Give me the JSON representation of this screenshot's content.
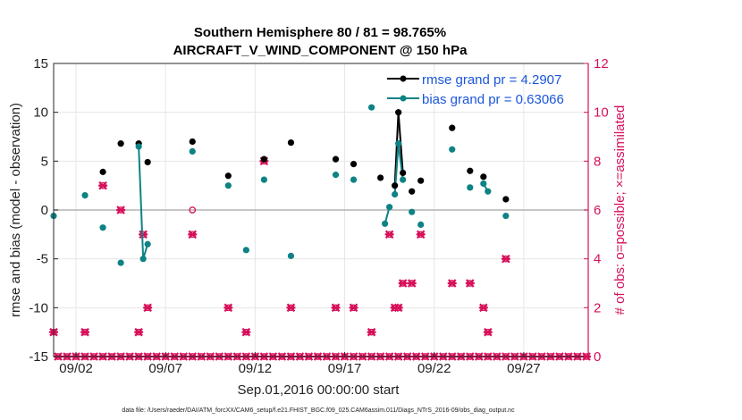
{
  "chart_data": {
    "type": "line",
    "title_line1": "Southern Hemisphere 80 / 81 = 98.765%",
    "title_line2": "AIRCRAFT_V_WIND_COMPONENT @ 150 hPa",
    "xlabel": "Sep.01,2016 00:00:00 start",
    "ylabel_left": "rmse and bias (model - observation)",
    "ylabel_right": "# of obs: o=possible; ×=assimilated",
    "footer": "data file: /Users/raeder/DAI/ATM_forcXX/CAM6_setup/f.e21.FHIST_BGC.f09_025.CAM6assim.011/Diags_NTrS_2016-09/obs_diag_output.nc",
    "xlim": [
      0.75,
      30.6
    ],
    "ylim_left": [
      -15,
      15
    ],
    "ylim_right": [
      0,
      12
    ],
    "xticks": [
      {
        "value": 2,
        "label": "09/02"
      },
      {
        "value": 7,
        "label": "09/07"
      },
      {
        "value": 12,
        "label": "09/12"
      },
      {
        "value": 17,
        "label": "09/17"
      },
      {
        "value": 22,
        "label": "09/22"
      },
      {
        "value": 27,
        "label": "09/27"
      }
    ],
    "yticks_left": [
      -15,
      -10,
      -5,
      0,
      5,
      10,
      15
    ],
    "yticks_right": [
      0,
      2,
      4,
      6,
      8,
      10,
      12
    ],
    "colors": {
      "rmse": "#000000",
      "bias": "#0e8284",
      "obs": "#d6105a",
      "zero_line": "#b3b3b3"
    },
    "series": [
      {
        "name": "rmse grand pr = 4.2907",
        "x": [
          3.5,
          4.5,
          5.5,
          6.0,
          8.5,
          10.5,
          12.5,
          14.0,
          16.5,
          17.5,
          19.0,
          19.8,
          20.0,
          20.25,
          20.75,
          21.25,
          23.0,
          24.0,
          24.75,
          26.0
        ],
        "y": [
          3.9,
          6.8,
          6.8,
          4.9,
          7.0,
          3.5,
          5.2,
          6.9,
          5.2,
          4.7,
          3.3,
          2.5,
          10.0,
          3.8,
          1.9,
          3.0,
          8.4,
          4.0,
          3.4,
          1.1
        ]
      },
      {
        "name": "bias grand pr = 0.63066",
        "x": [
          0.75,
          2.5,
          3.5,
          4.5,
          5.5,
          5.75,
          6.0,
          8.5,
          10.5,
          11.5,
          12.5,
          14.0,
          16.5,
          17.5,
          18.5,
          19.25,
          19.5,
          19.8,
          20.0,
          20.25,
          20.75,
          21.25,
          23.0,
          24.0,
          24.75,
          25.0,
          26.0
        ],
        "y": [
          -0.6,
          1.5,
          -1.8,
          -5.4,
          6.5,
          -5.0,
          -3.5,
          6.0,
          2.5,
          -4.1,
          3.1,
          -4.7,
          3.6,
          3.1,
          10.5,
          -1.4,
          0.3,
          1.6,
          6.8,
          3.1,
          -0.2,
          -1.5,
          6.2,
          2.3,
          2.7,
          1.9,
          -0.6
        ]
      }
    ],
    "assimilated_obs": {
      "x": [
        0.75,
        2.5,
        3.5,
        4.5,
        5.5,
        5.75,
        6.0,
        8.5,
        10.5,
        11.5,
        12.5,
        14.0,
        16.5,
        17.5,
        18.5,
        19.5,
        19.8,
        20.0,
        20.25,
        20.75,
        21.25,
        23.0,
        24.0,
        24.75,
        25.0,
        26.0
      ],
      "y": [
        1,
        1,
        7,
        6,
        1,
        5,
        2,
        5,
        2,
        1,
        8,
        2,
        2,
        2,
        1,
        5,
        2,
        2,
        3,
        3,
        5,
        3,
        3,
        2,
        1,
        4
      ]
    },
    "possible_obs_extra": {
      "x": [
        8.5
      ],
      "y": [
        6
      ]
    },
    "zero_obs_days": [
      1,
      1.5,
      2,
      2.5,
      3,
      3.5,
      4,
      4.5,
      5,
      5.5,
      6,
      6.5,
      7,
      7.5,
      8,
      8.5,
      9,
      9.5,
      10,
      10.5,
      11,
      11.5,
      12,
      12.5,
      13,
      13.5,
      14,
      14.5,
      15,
      15.5,
      16,
      16.5,
      17,
      17.5,
      18,
      18.5,
      19,
      19.5,
      20,
      20.5,
      21,
      21.5,
      22,
      22.5,
      23,
      23.5,
      24,
      24.5,
      25,
      25.5,
      26,
      26.5,
      27,
      27.5,
      28,
      28.5,
      29,
      29.5,
      30,
      30.5
    ]
  }
}
